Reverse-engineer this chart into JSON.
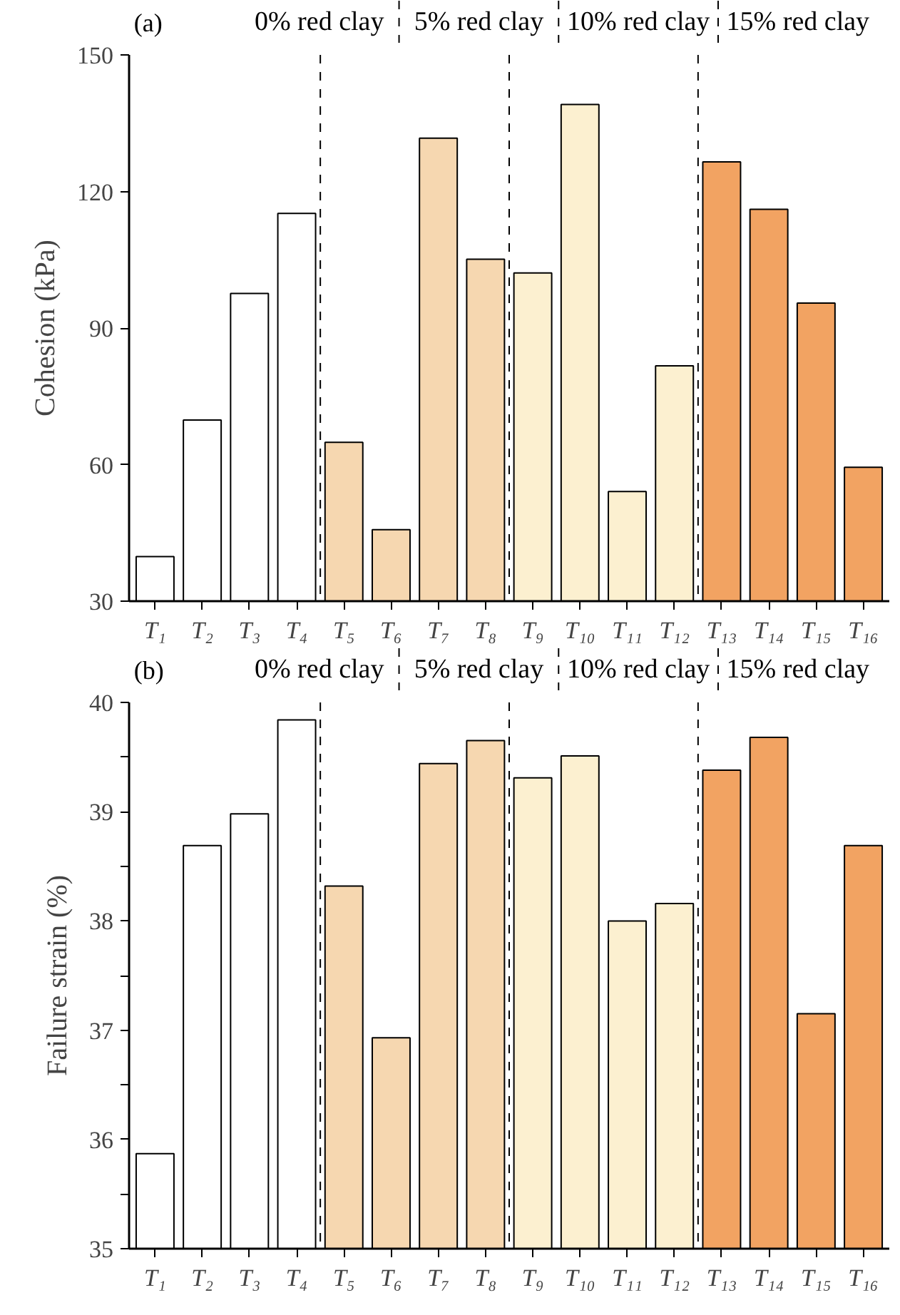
{
  "chart_data": [
    {
      "type": "bar",
      "ylabel": "Cohesion (kPa)",
      "categories": [
        "T₁",
        "T₂",
        "T₃",
        "T₄",
        "T₅",
        "T₆",
        "T₇",
        "T₈",
        "T₉",
        "T₁₀",
        "T₁₁",
        "T₁₂",
        "T₁₃",
        "T₁₄",
        "T₁₅",
        "T₁₆"
      ],
      "values": [
        39.8,
        69.8,
        97.6,
        115.2,
        64.9,
        45.7,
        131.7,
        105.1,
        102.1,
        139.1,
        54.1,
        81.7,
        126.5,
        116.1,
        95.5,
        59.4
      ],
      "colors": [
        "#ffffff",
        "#ffffff",
        "#ffffff",
        "#ffffff",
        "#f6d7b0",
        "#f6d7b0",
        "#f6d7b0",
        "#f6d7b0",
        "#fcf0d0",
        "#fcf0d0",
        "#fcf0d0",
        "#fcf0d0",
        "#f2a362",
        "#f2a362",
        "#f2a362",
        "#f2a362"
      ],
      "ylim": [
        30,
        150
      ],
      "yticks": [
        30,
        60,
        90,
        120,
        150
      ],
      "annotations": [
        "(a)",
        "0% red clay",
        "5% red clay",
        "10% red clay",
        "15% red clay"
      ],
      "grid": false
    },
    {
      "type": "bar",
      "ylabel": "Failure strain (%)",
      "categories": [
        "T₁",
        "T₂",
        "T₃",
        "T₄",
        "T₅",
        "T₆",
        "T₇",
        "T₈",
        "T₉",
        "T₁₀",
        "T₁₁",
        "T₁₂",
        "T₁₃",
        "T₁₄",
        "T₁₅",
        "T₁₆"
      ],
      "values": [
        35.87,
        38.69,
        38.98,
        39.84,
        38.32,
        36.93,
        39.44,
        39.65,
        39.31,
        39.51,
        38.0,
        38.16,
        39.38,
        39.68,
        37.15,
        38.69
      ],
      "colors": [
        "#ffffff",
        "#ffffff",
        "#ffffff",
        "#ffffff",
        "#f6d7b0",
        "#f6d7b0",
        "#f6d7b0",
        "#f6d7b0",
        "#fcf0d0",
        "#fcf0d0",
        "#fcf0d0",
        "#fcf0d0",
        "#f2a362",
        "#f2a362",
        "#f2a362",
        "#f2a362"
      ],
      "ylim": [
        35,
        40
      ],
      "yticks": [
        35,
        {
          "value": 35.5,
          "label": null
        },
        36,
        {
          "value": 36.5,
          "label": null
        },
        37,
        {
          "value": 37.5,
          "label": null
        },
        38,
        {
          "value": 38.5,
          "label": null
        },
        39,
        {
          "value": 39.5,
          "label": null
        },
        40
      ],
      "annotations": [
        "(b)",
        "0% red clay",
        "5% red clay",
        "10% red clay",
        "15% red clay"
      ],
      "grid": false
    }
  ]
}
